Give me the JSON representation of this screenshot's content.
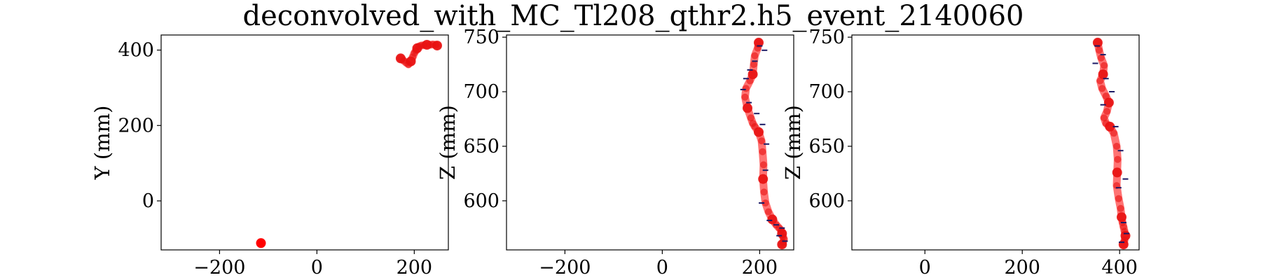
{
  "figure": {
    "title": "deconvolved_with_MC_Tl208_qthr2.h5_event_2140060"
  },
  "colors": {
    "track": "#ff0000",
    "track_core": "#e81010",
    "hits": "#1a1a66"
  },
  "chart_data": [
    {
      "type": "scatter",
      "name": "xy-view",
      "xlabel": "",
      "ylabel": "Y (mm)",
      "xlim": [
        -320,
        270
      ],
      "ylim": [
        -130,
        440
      ],
      "xticks": [
        -200,
        0,
        200
      ],
      "xtick_labels": [
        "−200",
        "0",
        "200"
      ],
      "yticks": [
        0,
        200,
        400
      ],
      "ytick_labels": [
        "0",
        "200",
        "400"
      ],
      "blobs": [
        {
          "x": -115,
          "y": -112
        }
      ],
      "track": {
        "x": [
          172,
          178,
          184,
          188,
          193,
          197,
          200,
          203,
          206,
          210,
          214,
          220,
          226,
          232,
          238,
          244,
          247
        ],
        "y": [
          378,
          372,
          366,
          362,
          370,
          382,
          392,
          398,
          405,
          410,
          412,
          413,
          414,
          414,
          415,
          414,
          412
        ]
      }
    },
    {
      "type": "scatter",
      "name": "xz-view",
      "xlabel": "",
      "ylabel": "Z (mm)",
      "xlim": [
        -320,
        270
      ],
      "ylim": [
        555,
        752
      ],
      "xticks": [
        -200,
        0,
        200
      ],
      "xtick_labels": [
        "−200",
        "0",
        "200"
      ],
      "yticks": [
        600,
        650,
        700,
        750
      ],
      "ytick_labels": [
        "600",
        "650",
        "700",
        "750"
      ],
      "track": {
        "x": [
          198,
          196,
          190,
          188,
          186,
          180,
          172,
          170,
          175,
          182,
          186,
          190,
          198,
          204,
          206,
          208,
          207,
          209,
          212,
          218,
          226,
          234,
          240,
          244,
          246,
          248,
          250,
          248,
          246
        ],
        "y": [
          745,
          740,
          733,
          725,
          716,
          710,
          703,
          695,
          685,
          676,
          671,
          668,
          663,
          655,
          645,
          633,
          620,
          608,
          598,
          590,
          583,
          578,
          575,
          573,
          570,
          567,
          565,
          562,
          560
        ]
      },
      "hits": {
        "x": [
          200,
          210,
          190,
          180,
          172,
          166,
          178,
          194,
          206,
          214,
          212,
          204,
          220,
          234,
          246,
          240,
          252
        ],
        "y": [
          742,
          738,
          728,
          720,
          712,
          702,
          690,
          680,
          670,
          652,
          628,
          598,
          582,
          578,
          575,
          568,
          563
        ]
      }
    },
    {
      "type": "scatter",
      "name": "yz-view",
      "xlabel": "",
      "ylabel": "Z (mm)",
      "xlim": [
        -150,
        440
      ],
      "ylim": [
        555,
        752
      ],
      "xticks": [
        0,
        200,
        400
      ],
      "xtick_labels": [
        "0",
        "200",
        "400"
      ],
      "yticks": [
        600,
        650,
        700,
        750
      ],
      "ytick_labels": [
        "600",
        "650",
        "700",
        "750"
      ],
      "track": {
        "x": [
          355,
          358,
          362,
          368,
          366,
          360,
          364,
          372,
          378,
          374,
          368,
          372,
          380,
          388,
          394,
          396,
          395,
          394,
          398,
          402,
          404,
          406,
          408,
          410,
          412,
          410,
          408
        ],
        "y": [
          745,
          738,
          731,
          724,
          716,
          710,
          703,
          696,
          690,
          682,
          676,
          671,
          668,
          662,
          650,
          638,
          626,
          614,
          602,
          593,
          585,
          580,
          576,
          572,
          568,
          564,
          560
        ]
      },
      "hits": {
        "x": [
          354,
          366,
          350,
          372,
          384,
          366,
          392,
          402,
          412,
          398,
          408,
          414,
          404
        ],
        "y": [
          742,
          734,
          726,
          712,
          700,
          688,
          668,
          646,
          620,
          612,
          580,
          570,
          562
        ]
      }
    }
  ]
}
